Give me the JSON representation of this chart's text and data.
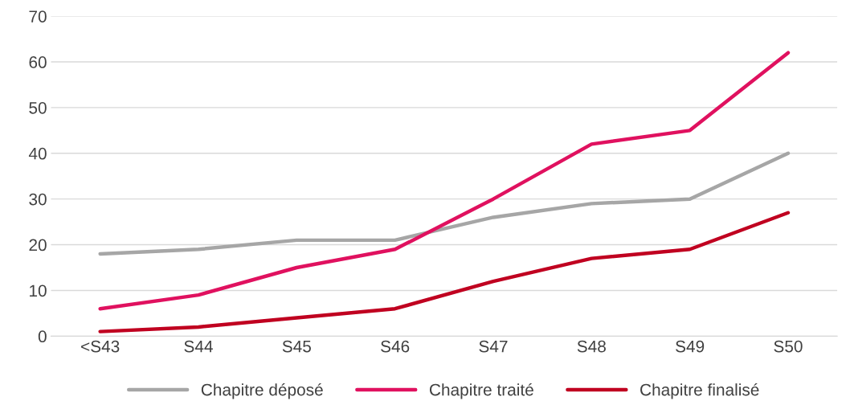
{
  "chart_data": {
    "type": "line",
    "categories": [
      "<S43",
      "S44",
      "S45",
      "S46",
      "S47",
      "S48",
      "S49",
      "S50"
    ],
    "series": [
      {
        "name": "Chapitre déposé",
        "color": "#a6a6a6",
        "values": [
          18,
          19,
          21,
          21,
          26,
          29,
          30,
          40
        ]
      },
      {
        "name": "Chapitre traité",
        "color": "#e0115f",
        "values": [
          6,
          9,
          15,
          19,
          30,
          42,
          45,
          62
        ]
      },
      {
        "name": "Chapitre finalisé",
        "color": "#c00020",
        "values": [
          1,
          2,
          4,
          6,
          12,
          17,
          19,
          27
        ]
      }
    ],
    "ylim": [
      0,
      70
    ],
    "yticks": [
      0,
      10,
      20,
      30,
      40,
      50,
      60,
      70
    ],
    "grid": "y",
    "legend": "bottom",
    "marker": "none",
    "line_style": "solid"
  }
}
